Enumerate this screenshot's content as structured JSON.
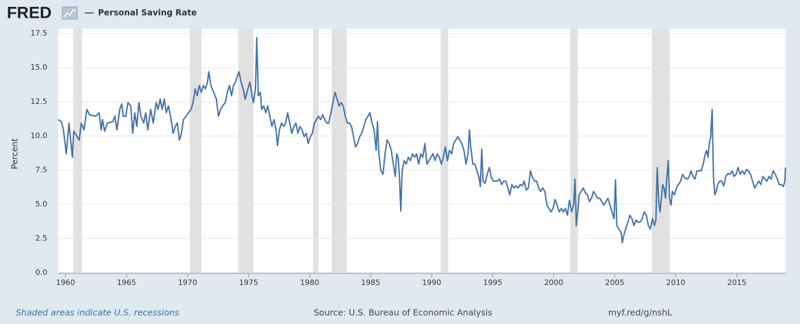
{
  "chart_data": {
    "type": "line",
    "logo": "FRED",
    "y_label": "Percent",
    "note": "Shaded areas indicate U.S. recessions",
    "source": "Source: U.S. Bureau of Economic Analysis",
    "link": "myf.red/g/nshL",
    "xlim": [
      1959.4,
      2019.0
    ],
    "xticks": [
      1960,
      1965,
      1970,
      1975,
      1980,
      1985,
      1990,
      1995,
      2000,
      2005,
      2010,
      2015
    ],
    "ylim": [
      0,
      17.5
    ],
    "yticks": [
      {
        "value": 0,
        "label": "0.0"
      },
      2.5,
      {
        "value": 5,
        "label": "5.0"
      },
      7.5,
      {
        "value": 10,
        "label": "10.0"
      },
      12.5,
      {
        "value": 15,
        "label": "15.0"
      },
      17.5
    ],
    "grid": true,
    "recession_color": "#e1e1e1",
    "recessions": [
      {
        "start": 1960.62,
        "end": 1961.35
      },
      {
        "start": 1970.17,
        "end": 1971.13
      },
      {
        "start": 1974.16,
        "end": 1975.39
      },
      {
        "start": 1980.28,
        "end": 1980.73
      },
      {
        "start": 1981.8,
        "end": 1983.04
      },
      {
        "start": 1990.73,
        "end": 1991.35
      },
      {
        "start": 2001.35,
        "end": 2001.97
      },
      {
        "start": 2008.04,
        "end": 2009.5
      }
    ],
    "x": [
      1959.4,
      1959.66,
      1959.83,
      1960.06,
      1960.28,
      1960.56,
      1960.67,
      1961.12,
      1961.29,
      1961.52,
      1961.74,
      1961.97,
      1962.47,
      1962.75,
      1962.92,
      1963.03,
      1963.2,
      1963.43,
      1963.88,
      1964.04,
      1964.21,
      1964.44,
      1964.61,
      1964.72,
      1964.94,
      1965.11,
      1965.34,
      1965.51,
      1965.67,
      1965.84,
      1966.01,
      1966.18,
      1966.4,
      1966.57,
      1966.74,
      1966.97,
      1967.19,
      1967.42,
      1967.58,
      1967.75,
      1967.92,
      1968.09,
      1968.26,
      1968.43,
      1968.6,
      1968.82,
      1968.99,
      1969.16,
      1969.33,
      1969.49,
      1969.66,
      1969.89,
      1970.06,
      1970.28,
      1970.45,
      1970.62,
      1970.79,
      1970.96,
      1971.12,
      1971.29,
      1971.46,
      1971.63,
      1971.74,
      1971.91,
      1972.13,
      1972.36,
      1972.53,
      1972.7,
      1972.87,
      1973.09,
      1973.26,
      1973.43,
      1973.6,
      1973.76,
      1973.93,
      1974.1,
      1974.21,
      1974.38,
      1974.55,
      1974.72,
      1974.94,
      1975.11,
      1975.28,
      1975.39,
      1975.56,
      1975.67,
      1975.79,
      1975.96,
      1976.07,
      1976.24,
      1976.41,
      1976.57,
      1976.74,
      1976.91,
      1977.08,
      1977.25,
      1977.36,
      1977.53,
      1977.7,
      1977.87,
      1978.03,
      1978.2,
      1978.37,
      1978.54,
      1978.71,
      1978.88,
      1979.04,
      1979.21,
      1979.38,
      1979.55,
      1979.72,
      1979.89,
      1980.06,
      1980.22,
      1980.39,
      1980.56,
      1980.73,
      1980.9,
      1981.07,
      1981.24,
      1981.4,
      1981.57,
      1981.74,
      1981.91,
      1982.08,
      1982.25,
      1982.42,
      1982.58,
      1982.75,
      1982.92,
      1983.09,
      1983.26,
      1983.43,
      1983.6,
      1983.76,
      1983.93,
      1984.1,
      1984.27,
      1984.44,
      1984.61,
      1984.78,
      1984.94,
      1985.11,
      1985.28,
      1985.45,
      1985.56,
      1985.67,
      1985.84,
      1986.01,
      1986.18,
      1986.35,
      1986.52,
      1986.69,
      1986.85,
      1987.02,
      1987.13,
      1987.25,
      1987.36,
      1987.47,
      1987.58,
      1987.75,
      1987.92,
      1988.09,
      1988.26,
      1988.43,
      1988.6,
      1988.76,
      1988.93,
      1989.1,
      1989.27,
      1989.44,
      1989.61,
      1989.78,
      1989.94,
      1990.11,
      1990.28,
      1990.45,
      1990.62,
      1990.79,
      1990.96,
      1991.12,
      1991.29,
      1991.46,
      1991.63,
      1991.8,
      1991.97,
      1992.14,
      1992.3,
      1992.47,
      1992.64,
      1992.81,
      1992.98,
      1993.09,
      1993.2,
      1993.37,
      1993.54,
      1993.71,
      1993.88,
      1993.99,
      1994.1,
      1994.21,
      1994.38,
      1994.55,
      1994.72,
      1994.89,
      1995.06,
      1995.22,
      1995.39,
      1995.56,
      1995.73,
      1995.9,
      1996.07,
      1996.24,
      1996.4,
      1996.57,
      1996.74,
      1996.91,
      1997.08,
      1997.25,
      1997.42,
      1997.58,
      1997.75,
      1997.92,
      1998.09,
      1998.26,
      1998.43,
      1998.6,
      1998.76,
      1998.93,
      1999.1,
      1999.27,
      1999.44,
      1999.61,
      1999.78,
      1999.94,
      2000.11,
      2000.28,
      2000.45,
      2000.62,
      2000.79,
      2000.96,
      2001.12,
      2001.29,
      2001.46,
      2001.63,
      2001.74,
      2001.85,
      2001.97,
      2002.08,
      2002.25,
      2002.42,
      2002.59,
      2002.76,
      2002.92,
      2003.09,
      2003.26,
      2003.43,
      2003.6,
      2003.77,
      2003.94,
      2004.1,
      2004.27,
      2004.44,
      2004.61,
      2004.78,
      2004.94,
      2005.06,
      2005.17,
      2005.34,
      2005.51,
      2005.62,
      2005.73,
      2005.9,
      2006.07,
      2006.24,
      2006.41,
      2006.57,
      2006.74,
      2006.91,
      2007.08,
      2007.25,
      2007.42,
      2007.59,
      2007.75,
      2007.92,
      2008.09,
      2008.26,
      2008.37,
      2008.48,
      2008.6,
      2008.71,
      2008.82,
      2008.93,
      2009.04,
      2009.16,
      2009.27,
      2009.38,
      2009.49,
      2009.61,
      2009.72,
      2009.89,
      2010.06,
      2010.22,
      2010.39,
      2010.56,
      2010.73,
      2010.9,
      2011.07,
      2011.24,
      2011.4,
      2011.57,
      2011.74,
      2011.91,
      2012.08,
      2012.25,
      2012.42,
      2012.53,
      2012.64,
      2012.75,
      2012.86,
      2012.98,
      2013.09,
      2013.2,
      2013.31,
      2013.43,
      2013.6,
      2013.76,
      2013.93,
      2014.1,
      2014.27,
      2014.44,
      2014.61,
      2014.78,
      2014.94,
      2015.11,
      2015.28,
      2015.45,
      2015.62,
      2015.79,
      2015.96,
      2016.12,
      2016.29,
      2016.46,
      2016.63,
      2016.8,
      2016.97,
      2017.14,
      2017.3,
      2017.47,
      2017.64,
      2017.81,
      2017.98,
      2018.15,
      2018.32,
      2018.48,
      2018.65,
      2018.82,
      2018.94,
      2018.99
    ],
    "series": [
      {
        "name": "Personal Saving Rate",
        "color": "#4572a7",
        "values": [
          11.2,
          11.05,
          10.45,
          8.7,
          10.95,
          8.45,
          10.35,
          9.7,
          10.95,
          10.45,
          11.95,
          11.55,
          11.45,
          11.7,
          10.45,
          11.2,
          10.35,
          10.95,
          11.05,
          11.45,
          10.45,
          11.95,
          12.35,
          11.45,
          11.45,
          12.45,
          12.2,
          10.2,
          11.7,
          10.7,
          12.45,
          11.45,
          10.95,
          11.7,
          10.45,
          11.95,
          10.95,
          12.45,
          11.95,
          12.7,
          11.95,
          12.7,
          11.7,
          12.2,
          11.45,
          10.2,
          10.7,
          10.95,
          9.7,
          10.2,
          11.2,
          11.45,
          11.7,
          11.95,
          12.45,
          13.45,
          12.95,
          13.7,
          13.2,
          13.7,
          13.45,
          13.95,
          14.7,
          13.7,
          13.2,
          12.7,
          11.45,
          11.95,
          12.2,
          12.45,
          13.2,
          13.7,
          12.95,
          13.7,
          13.95,
          14.45,
          14.7,
          13.95,
          13.45,
          12.7,
          13.45,
          13.95,
          12.95,
          12.45,
          13.45,
          17.2,
          12.95,
          13.2,
          11.95,
          12.2,
          11.7,
          12.2,
          11.45,
          10.7,
          11.2,
          10.45,
          9.3,
          10.45,
          10.95,
          10.7,
          10.95,
          11.7,
          10.95,
          10.2,
          10.7,
          10.95,
          10.2,
          10.7,
          10.45,
          9.95,
          10.2,
          9.45,
          9.95,
          10.2,
          10.95,
          11.2,
          11.45,
          11.2,
          11.55,
          11.2,
          10.95,
          10.95,
          11.7,
          12.45,
          13.2,
          12.7,
          12.2,
          12.45,
          12.2,
          11.45,
          10.95,
          10.95,
          10.7,
          9.95,
          9.2,
          9.45,
          9.95,
          10.2,
          10.7,
          11.2,
          11.45,
          11.7,
          10.95,
          10.45,
          8.95,
          11.05,
          8.7,
          7.45,
          7.2,
          8.7,
          9.7,
          9.45,
          8.95,
          7.95,
          7.05,
          8.7,
          8.45,
          7.05,
          4.5,
          7.45,
          8.2,
          7.95,
          8.45,
          8.2,
          8.7,
          8.45,
          8.7,
          7.95,
          8.7,
          8.45,
          9.45,
          7.95,
          8.2,
          8.45,
          8.7,
          8.2,
          8.7,
          8.45,
          7.95,
          8.45,
          9.2,
          8.2,
          8.95,
          8.7,
          9.45,
          9.7,
          9.95,
          9.7,
          9.45,
          8.95,
          7.95,
          8.7,
          10.45,
          9.2,
          7.95,
          7.95,
          7.45,
          6.95,
          6.3,
          9.05,
          6.7,
          6.55,
          7.2,
          7.7,
          6.95,
          6.7,
          6.7,
          6.7,
          6.85,
          6.45,
          6.7,
          6.7,
          6.2,
          5.7,
          6.45,
          6.2,
          6.35,
          6.2,
          6.45,
          6.35,
          6.7,
          6.05,
          6.2,
          7.45,
          6.95,
          6.7,
          6.7,
          6.2,
          5.95,
          6.2,
          5.95,
          4.95,
          4.7,
          4.45,
          4.7,
          5.35,
          4.95,
          4.45,
          4.7,
          4.45,
          4.7,
          4.2,
          5.3,
          4.45,
          4.95,
          6.85,
          3.45,
          4.45,
          5.7,
          5.95,
          6.2,
          5.85,
          5.7,
          5.2,
          5.45,
          5.95,
          5.7,
          5.45,
          5.45,
          5.2,
          4.95,
          5.2,
          5.45,
          4.95,
          4.45,
          3.95,
          6.8,
          3.45,
          3.2,
          2.95,
          2.2,
          2.7,
          3.2,
          3.7,
          4.2,
          3.95,
          3.45,
          3.85,
          3.7,
          3.7,
          3.95,
          4.45,
          4.2,
          3.45,
          3.2,
          3.95,
          3.45,
          3.85,
          7.7,
          5.2,
          4.45,
          5.45,
          6.45,
          6.2,
          5.45,
          6.95,
          8.2,
          5.45,
          4.95,
          5.95,
          5.7,
          6.2,
          6.45,
          6.7,
          7.2,
          6.95,
          6.85,
          6.95,
          7.45,
          7.05,
          6.85,
          7.45,
          7.45,
          7.45,
          7.95,
          8.7,
          8.95,
          8.45,
          9.45,
          9.95,
          11.95,
          6.95,
          5.7,
          5.95,
          6.45,
          6.7,
          6.7,
          6.35,
          7.05,
          7.25,
          7.2,
          7.45,
          7.05,
          7.2,
          7.7,
          7.2,
          7.45,
          7.2,
          7.55,
          7.45,
          7.2,
          6.7,
          6.2,
          6.45,
          6.7,
          6.45,
          7.05,
          6.85,
          6.7,
          7.05,
          6.85,
          7.45,
          7.2,
          6.85,
          6.45,
          6.45,
          6.3,
          6.7,
          7.7
        ]
      }
    ]
  }
}
